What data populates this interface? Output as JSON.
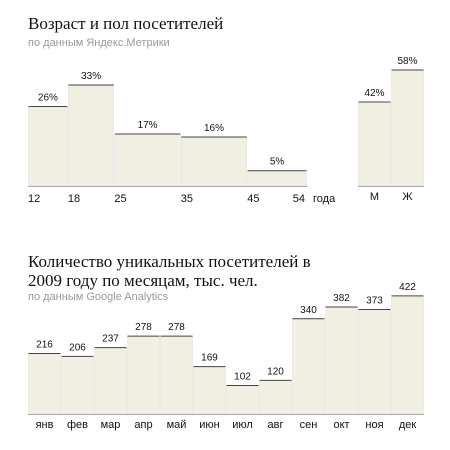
{
  "chart_data": [
    {
      "type": "histogram",
      "title": "Возраст и пол посетителей",
      "subtitle": "по данным Яндекс.Метрики",
      "bins": [
        12,
        18,
        25,
        35,
        45,
        54
      ],
      "values": [
        26,
        33,
        17,
        16,
        5
      ],
      "value_labels": [
        "26%",
        "33%",
        "17%",
        "16%",
        "5%"
      ],
      "xlabel": "года",
      "color": "#f1eee2"
    },
    {
      "type": "bar",
      "categories": [
        "М",
        "Ж"
      ],
      "values": [
        42,
        58
      ],
      "value_labels": [
        "42%",
        "58%"
      ],
      "color": "#f1eee2"
    },
    {
      "type": "bar",
      "title": "Количество уникальных посетителей в 2009 году по месяцам, тыс. чел.",
      "subtitle": "по данным Google Analytics",
      "categories": [
        "янв",
        "фев",
        "мар",
        "апр",
        "май",
        "июн",
        "июл",
        "авг",
        "сен",
        "окт",
        "ноя",
        "дек"
      ],
      "values": [
        216,
        206,
        237,
        278,
        278,
        169,
        102,
        120,
        340,
        382,
        373,
        422
      ],
      "color": "#f1eee2"
    }
  ]
}
